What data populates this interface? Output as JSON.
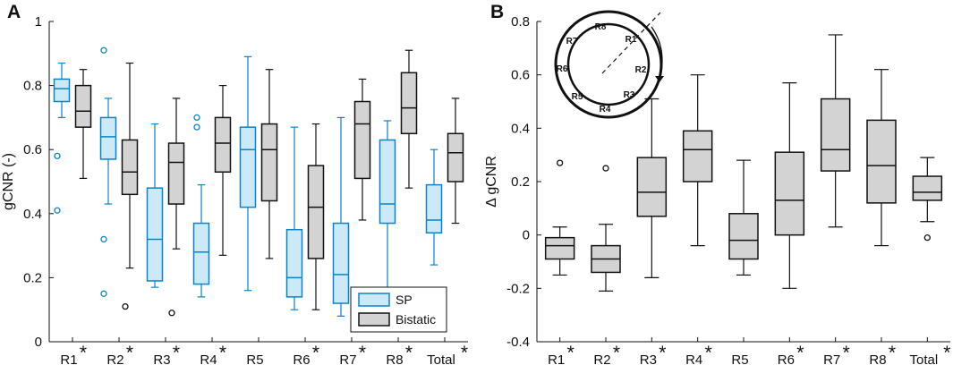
{
  "chart_data": [
    {
      "panel": "A",
      "type": "box",
      "ylabel": "gCNR (-)",
      "ylim": [
        0,
        1
      ],
      "yticks": [
        0,
        0.2,
        0.4,
        0.6,
        0.8,
        1
      ],
      "ytick_labels": [
        "0",
        "0.2",
        "0.4",
        "0.6",
        "0.8",
        "1"
      ],
      "categories": [
        "R1",
        "R2",
        "R3",
        "R4",
        "R5",
        "R6",
        "R7",
        "R8",
        "Total"
      ],
      "significant": [
        true,
        true,
        true,
        true,
        false,
        true,
        true,
        true,
        true
      ],
      "star_symbol": "*",
      "legend": {
        "position": "bottom-right",
        "entries": [
          "SP",
          "Bistatic"
        ]
      },
      "series": [
        {
          "name": "SP",
          "color": "#0b84c6",
          "fill": "#cbe9f6",
          "boxes": [
            {
              "whislo": 0.7,
              "q1": 0.75,
              "med": 0.79,
              "q3": 0.82,
              "whishi": 0.87,
              "fliers": [
                0.58,
                0.41
              ]
            },
            {
              "whislo": 0.43,
              "q1": 0.57,
              "med": 0.64,
              "q3": 0.7,
              "whishi": 0.76,
              "fliers": [
                0.91,
                0.32,
                0.15
              ]
            },
            {
              "whislo": 0.17,
              "q1": 0.19,
              "med": 0.32,
              "q3": 0.48,
              "whishi": 0.68,
              "fliers": []
            },
            {
              "whislo": 0.14,
              "q1": 0.18,
              "med": 0.28,
              "q3": 0.37,
              "whishi": 0.49,
              "fliers": [
                0.7,
                0.67
              ]
            },
            {
              "whislo": 0.16,
              "q1": 0.42,
              "med": 0.6,
              "q3": 0.67,
              "whishi": 0.89,
              "fliers": []
            },
            {
              "whislo": 0.1,
              "q1": 0.14,
              "med": 0.2,
              "q3": 0.35,
              "whishi": 0.67,
              "fliers": []
            },
            {
              "whislo": 0.08,
              "q1": 0.12,
              "med": 0.21,
              "q3": 0.37,
              "whishi": 0.7,
              "fliers": []
            },
            {
              "whislo": 0.17,
              "q1": 0.37,
              "med": 0.43,
              "q3": 0.63,
              "whishi": 0.69,
              "fliers": []
            },
            {
              "whislo": 0.24,
              "q1": 0.34,
              "med": 0.38,
              "q3": 0.49,
              "whishi": 0.6,
              "fliers": []
            }
          ]
        },
        {
          "name": "Bistatic",
          "color": "#111111",
          "fill": "#d3d3d3",
          "boxes": [
            {
              "whislo": 0.51,
              "q1": 0.67,
              "med": 0.72,
              "q3": 0.8,
              "whishi": 0.85,
              "fliers": []
            },
            {
              "whislo": 0.23,
              "q1": 0.46,
              "med": 0.53,
              "q3": 0.63,
              "whishi": 0.87,
              "fliers": [
                0.11
              ]
            },
            {
              "whislo": 0.29,
              "q1": 0.43,
              "med": 0.56,
              "q3": 0.62,
              "whishi": 0.76,
              "fliers": [
                0.09
              ]
            },
            {
              "whislo": 0.27,
              "q1": 0.53,
              "med": 0.62,
              "q3": 0.7,
              "whishi": 0.8,
              "fliers": []
            },
            {
              "whislo": 0.26,
              "q1": 0.44,
              "med": 0.6,
              "q3": 0.68,
              "whishi": 0.85,
              "fliers": []
            },
            {
              "whislo": 0.1,
              "q1": 0.26,
              "med": 0.42,
              "q3": 0.55,
              "whishi": 0.68,
              "fliers": []
            },
            {
              "whislo": 0.38,
              "q1": 0.51,
              "med": 0.68,
              "q3": 0.75,
              "whishi": 0.82,
              "fliers": []
            },
            {
              "whislo": 0.48,
              "q1": 0.65,
              "med": 0.73,
              "q3": 0.84,
              "whishi": 0.91,
              "fliers": []
            },
            {
              "whislo": 0.37,
              "q1": 0.5,
              "med": 0.59,
              "q3": 0.65,
              "whishi": 0.76,
              "fliers": []
            }
          ]
        }
      ]
    },
    {
      "panel": "B",
      "type": "box",
      "ylabel": "Δ gCNR",
      "ylim": [
        -0.4,
        0.8
      ],
      "yticks": [
        -0.4,
        -0.2,
        0,
        0.2,
        0.4,
        0.6,
        0.8
      ],
      "ytick_labels": [
        "-0.4",
        "-0.2",
        "0",
        "0.2",
        "0.4",
        "0.6",
        "0.8"
      ],
      "categories": [
        "R1",
        "R2",
        "R3",
        "R4",
        "R5",
        "R6",
        "R7",
        "R8",
        "Total"
      ],
      "significant": [
        true,
        true,
        true,
        true,
        false,
        true,
        true,
        true,
        true
      ],
      "star_symbol": "*",
      "series": [
        {
          "name": "Δ gCNR",
          "color": "#111111",
          "fill": "#d3d3d3",
          "boxes": [
            {
              "whislo": -0.15,
              "q1": -0.09,
              "med": -0.04,
              "q3": -0.01,
              "whishi": 0.03,
              "fliers": [
                0.27
              ]
            },
            {
              "whislo": -0.21,
              "q1": -0.14,
              "med": -0.09,
              "q3": -0.04,
              "whishi": 0.04,
              "fliers": [
                0.25
              ]
            },
            {
              "whislo": -0.16,
              "q1": 0.07,
              "med": 0.16,
              "q3": 0.29,
              "whishi": 0.51,
              "fliers": []
            },
            {
              "whislo": -0.04,
              "q1": 0.2,
              "med": 0.32,
              "q3": 0.39,
              "whishi": 0.6,
              "fliers": []
            },
            {
              "whislo": -0.15,
              "q1": -0.09,
              "med": -0.02,
              "q3": 0.08,
              "whishi": 0.28,
              "fliers": []
            },
            {
              "whislo": -0.2,
              "q1": 0.0,
              "med": 0.13,
              "q3": 0.31,
              "whishi": 0.57,
              "fliers": []
            },
            {
              "whislo": 0.03,
              "q1": 0.24,
              "med": 0.32,
              "q3": 0.51,
              "whishi": 0.75,
              "fliers": []
            },
            {
              "whislo": -0.04,
              "q1": 0.12,
              "med": 0.26,
              "q3": 0.43,
              "whishi": 0.62,
              "fliers": []
            },
            {
              "whislo": 0.05,
              "q1": 0.13,
              "med": 0.16,
              "q3": 0.22,
              "whishi": 0.29,
              "fliers": [
                -0.01
              ]
            }
          ]
        }
      ],
      "inset": {
        "type": "ring-diagram",
        "labels": [
          "R8",
          "R1",
          "R2",
          "R3",
          "R4",
          "R5",
          "R6",
          "R7"
        ]
      }
    }
  ],
  "panels": [
    {
      "label": "A"
    },
    {
      "label": "B"
    }
  ]
}
